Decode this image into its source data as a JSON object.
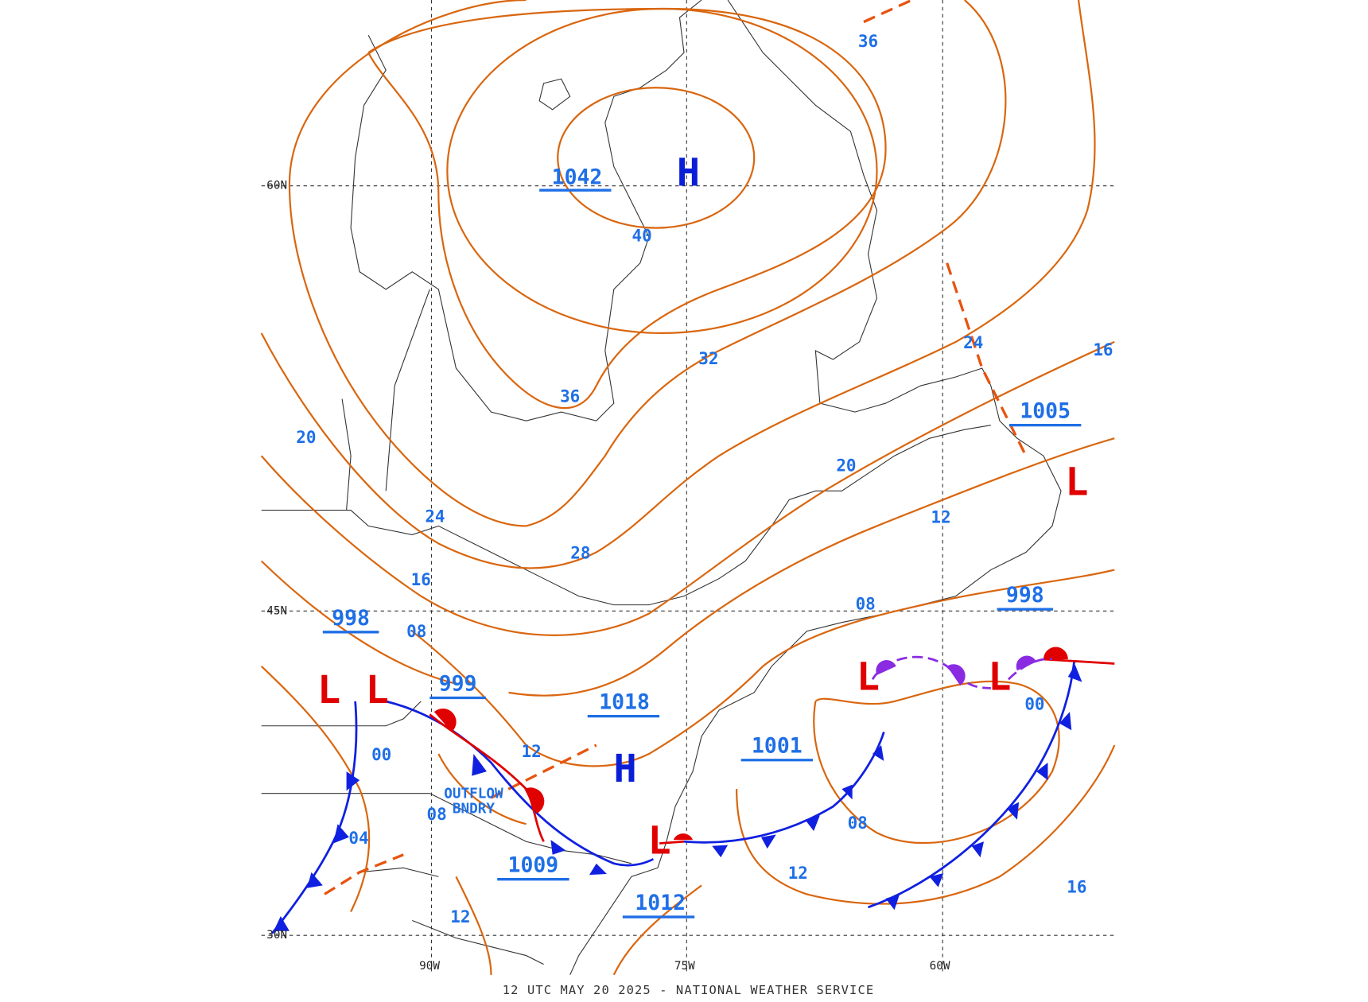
{
  "map": {
    "grid_labels": [
      "60N",
      "45N",
      "30N",
      "90W",
      "75W",
      "60W"
    ],
    "centers": [
      {
        "symbol": "H",
        "pressure": "1042"
      },
      {
        "symbol": "H",
        "pressure": "1018"
      },
      {
        "symbol": "L",
        "pressure": "998"
      },
      {
        "symbol": "L",
        "pressure": "999"
      },
      {
        "symbol": "L",
        "pressure": "1005"
      },
      {
        "symbol": "L",
        "pressure": "998"
      },
      {
        "symbol": "L",
        "pressure": "1012"
      },
      {
        "symbol": "L"
      }
    ],
    "pressure_labels": [
      "1009",
      "1001"
    ],
    "isobar_labels": [
      "36",
      "40",
      "36",
      "32",
      "28",
      "24",
      "20",
      "16",
      "08",
      "00",
      "04",
      "08",
      "12",
      "12",
      "12",
      "08",
      "00",
      "16",
      "16",
      "24",
      "20",
      "12",
      "08"
    ],
    "annotation": [
      "OUTFLOW",
      "BNDRY"
    ],
    "footer": "12 UTC MAY 20 2025 - NATIONAL WEATHER SERVICE"
  }
}
